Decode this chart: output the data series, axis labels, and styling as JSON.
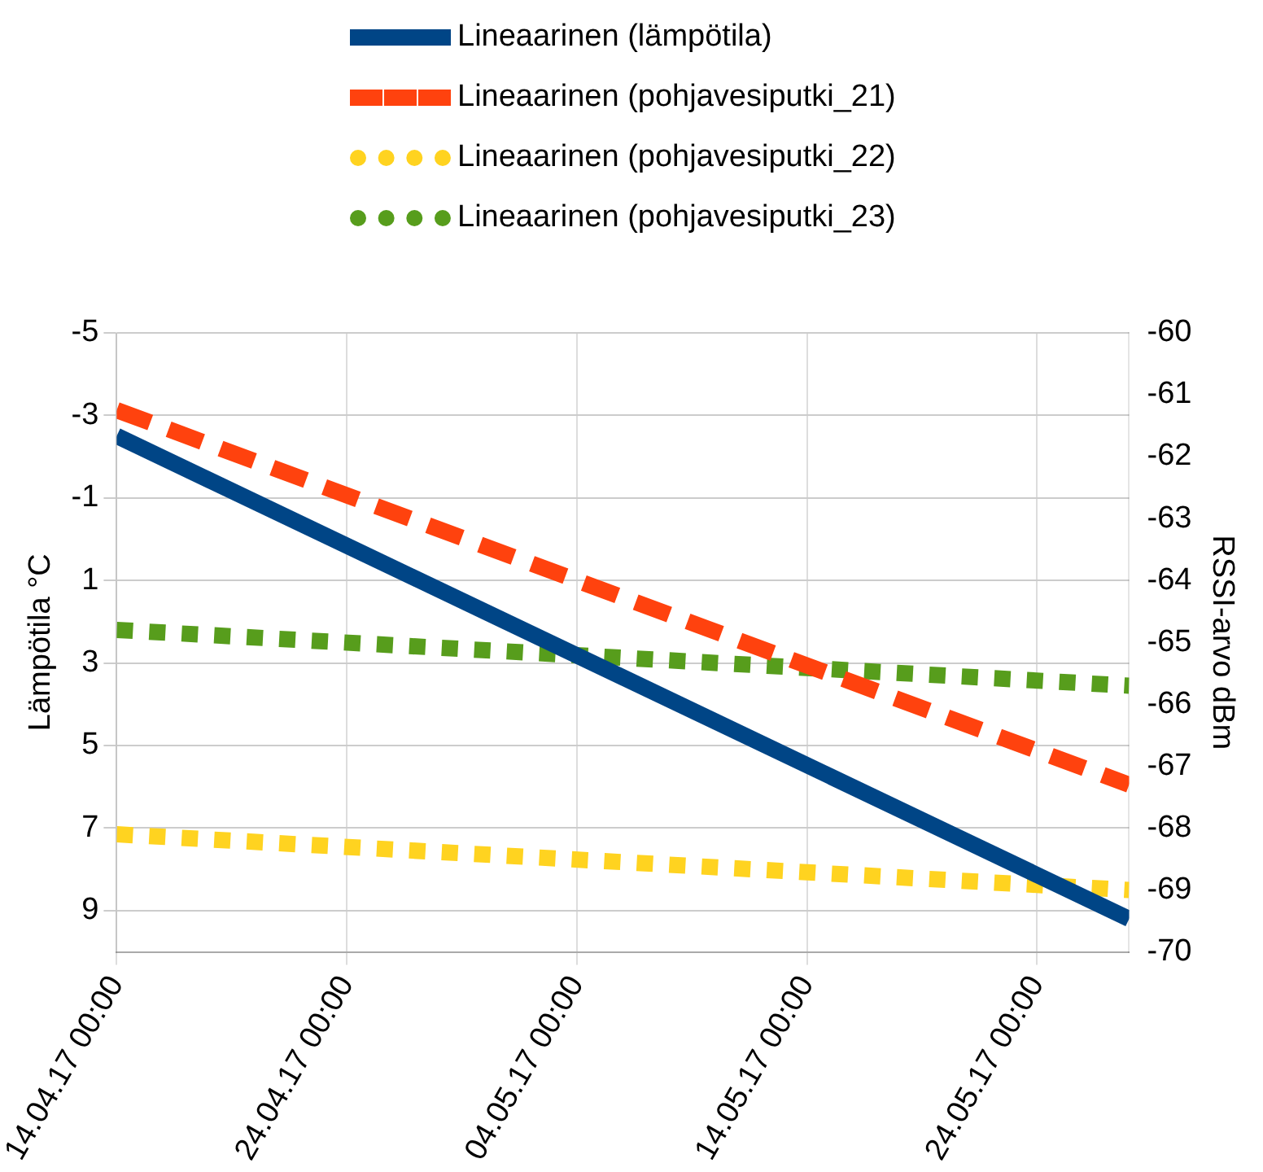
{
  "chart_data": {
    "type": "line",
    "ylabel": "Lämpötila °C",
    "y2label": "RSSI-arvo dBm",
    "x": [
      "--04-14",
      "--05-28"
    ],
    "xlim": [
      "--04-14",
      "--05-28"
    ],
    "xticks": [
      {
        "value": "--04-14",
        "label": "14.04.17 00:00"
      },
      {
        "value": "--04-24",
        "label": "24.04.17 00:00"
      },
      {
        "value": "--05-04",
        "label": "04.05.17 00:00"
      },
      {
        "value": "--05-14",
        "label": "14.05.17 00:00"
      },
      {
        "value": "--05-24",
        "label": "24.05.17 00:00"
      }
    ],
    "ylim": [
      10,
      -5
    ],
    "yticks": [
      -5,
      -3,
      -1,
      1,
      3,
      5,
      7,
      9
    ],
    "y2lim": [
      -70,
      -60
    ],
    "y2ticks": [
      -60,
      -61,
      -62,
      -63,
      -64,
      -65,
      -66,
      -67,
      -68,
      -69,
      -70
    ],
    "series": [
      {
        "name": "Lineaarinen (lämpötila)",
        "color": "#004586",
        "values": [
          -2.5,
          9.2
        ],
        "line_style": "solid"
      },
      {
        "name": "Lineaarinen (pohjavesiputki_21)",
        "color": "#ff420e",
        "values": [
          -61.25,
          -67.3
        ],
        "axis": "y2",
        "line_style": "dashed"
      },
      {
        "name": "Lineaarinen (pohjavesiputki_22)",
        "color": "#ffd320",
        "values": [
          -68.1,
          -69.0
        ],
        "axis": "y2",
        "line_style": "dotted"
      },
      {
        "name": "Lineaarinen (pohjavesiputki_23)",
        "color": "#579d1c",
        "values": [
          -64.8,
          -65.7
        ],
        "axis": "y2",
        "line_style": "dotted"
      }
    ],
    "grid": true,
    "legend": "top",
    "marker": "none"
  }
}
